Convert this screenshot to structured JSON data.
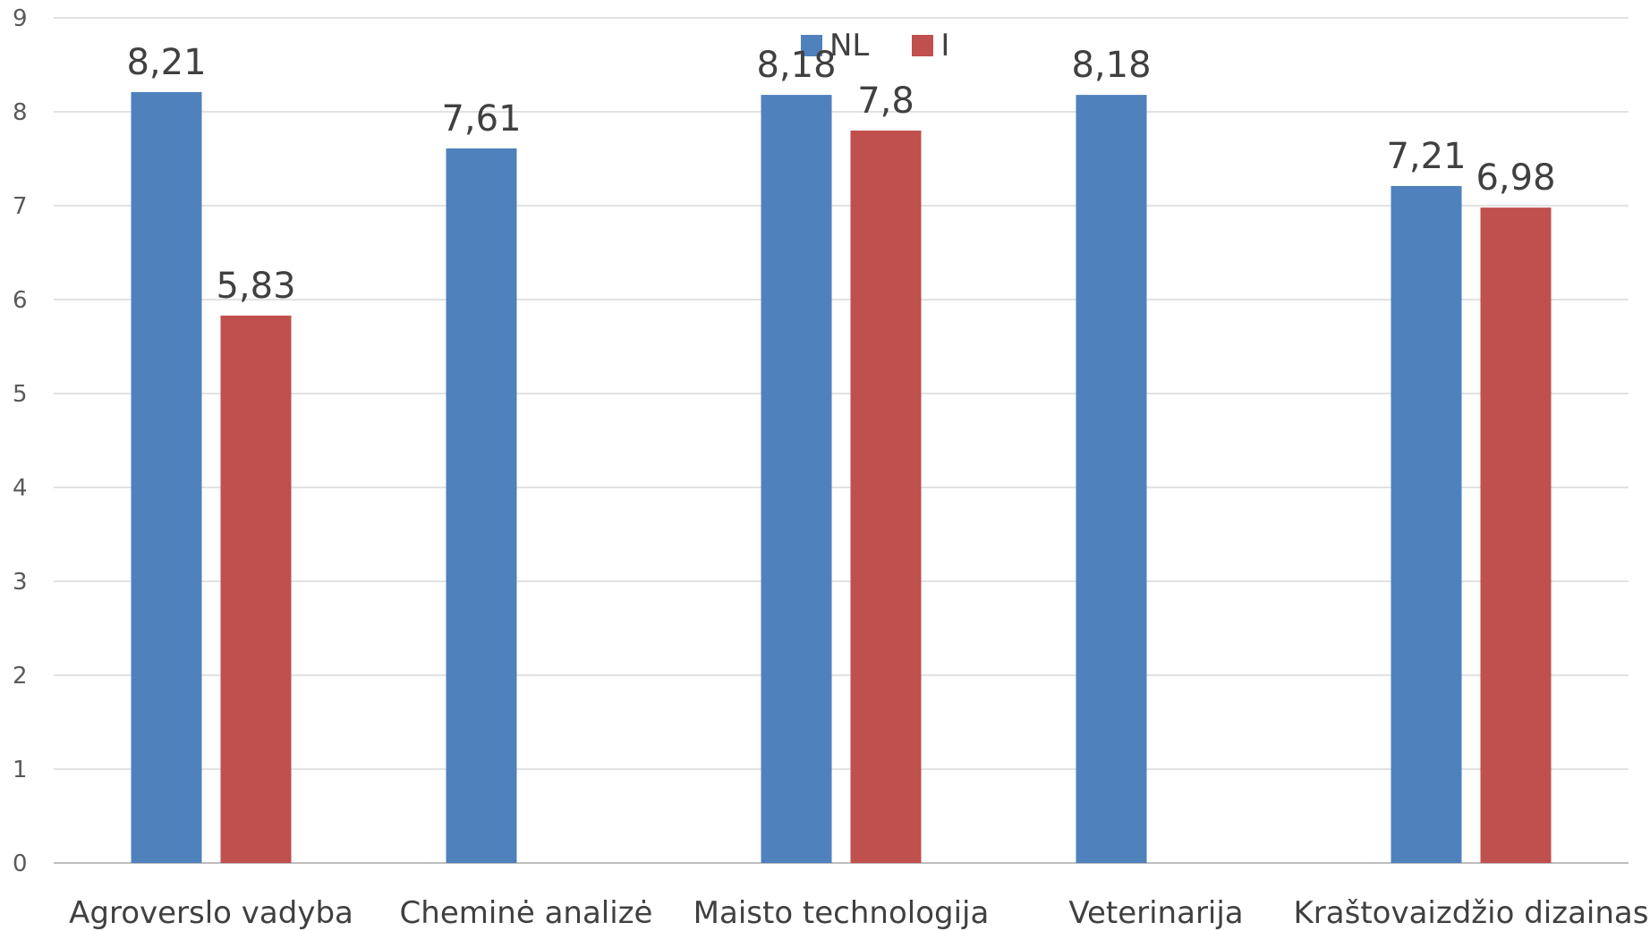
{
  "chart_data": {
    "type": "bar",
    "categories": [
      "Agroverslo vadyba",
      "Cheminė analizė",
      "Maisto technologija",
      "Veterinarija",
      "Kraštovaizdžio dizainas"
    ],
    "series": [
      {
        "name": "NL",
        "color": "#4F81BD",
        "values": [
          8.21,
          7.61,
          8.18,
          8.18,
          7.21
        ],
        "labels": [
          "8,21",
          "7,61",
          "8,18",
          "8,18",
          "7,21"
        ]
      },
      {
        "name": "I",
        "color": "#C0504D",
        "values": [
          5.83,
          null,
          7.8,
          null,
          6.98
        ],
        "labels": [
          "5,83",
          "",
          "7,8",
          "",
          "6,98"
        ]
      }
    ],
    "ylim": [
      0,
      9
    ],
    "yticks": [
      "0",
      "1",
      "2",
      "3",
      "4",
      "5",
      "6",
      "7",
      "8",
      "9"
    ],
    "grid": true,
    "legend_position": "top"
  }
}
